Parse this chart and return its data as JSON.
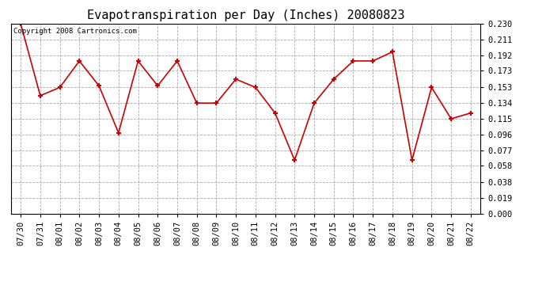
{
  "title": "Evapotranspiration per Day (Inches) 20080823",
  "copyright": "Copyright 2008 Cartronics.com",
  "dates": [
    "07/30",
    "07/31",
    "08/01",
    "08/02",
    "08/03",
    "08/04",
    "08/05",
    "08/06",
    "08/07",
    "08/08",
    "08/09",
    "08/10",
    "08/11",
    "08/12",
    "08/13",
    "08/14",
    "08/15",
    "08/16",
    "08/17",
    "08/18",
    "08/19",
    "08/20",
    "08/21",
    "08/22"
  ],
  "values": [
    0.23,
    0.143,
    0.153,
    0.185,
    0.155,
    0.098,
    0.185,
    0.155,
    0.185,
    0.134,
    0.134,
    0.163,
    0.153,
    0.122,
    0.065,
    0.134,
    0.163,
    0.185,
    0.185,
    0.196,
    0.065,
    0.153,
    0.115,
    0.122
  ],
  "line_color": "#cc0000",
  "marker_color": "#cc0000",
  "bg_color": "#ffffff",
  "plot_bg_color": "#ffffff",
  "grid_color": "#aaaaaa",
  "title_fontsize": 11,
  "tick_fontsize": 7.5,
  "ylim": [
    0.0,
    0.23
  ],
  "yticks": [
    0.0,
    0.019,
    0.038,
    0.058,
    0.077,
    0.096,
    0.115,
    0.134,
    0.153,
    0.173,
    0.192,
    0.211,
    0.23
  ]
}
